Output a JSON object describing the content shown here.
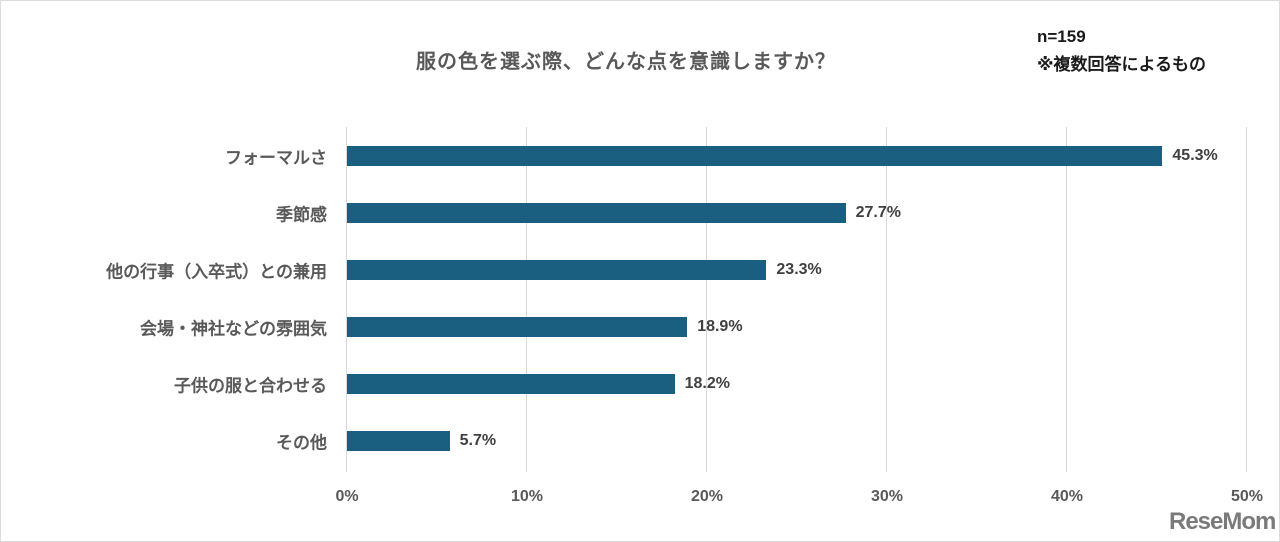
{
  "chart_data": {
    "type": "bar",
    "orientation": "horizontal",
    "title": "服の色を選ぶ際、どんな点を意識しますか？",
    "annotations": [
      "n=159",
      "※複数回答によるもの"
    ],
    "categories": [
      "フォーマルさ",
      "季節感",
      "他の行事（入卒式）との兼用",
      "会場・神社などの雰囲気",
      "子供の服と合わせる",
      "その他"
    ],
    "values": [
      45.3,
      27.7,
      23.3,
      18.9,
      18.2,
      5.7
    ],
    "value_labels": [
      "45.3%",
      "27.7%",
      "23.3%",
      "18.9%",
      "18.2%",
      "5.7%"
    ],
    "xlabel": "",
    "ylabel": "",
    "xlim": [
      0,
      50
    ],
    "x_ticks": [
      "0%",
      "10%",
      "20%",
      "30%",
      "40%",
      "50%"
    ],
    "grid": true,
    "legend": null,
    "bar_color": "#1b5f80"
  },
  "header": {
    "title": "服の色を選ぶ際、どんな点を意識しますか？",
    "n_label": "n=159",
    "note": "※複数回答によるもの"
  },
  "watermark": "ReseMom"
}
